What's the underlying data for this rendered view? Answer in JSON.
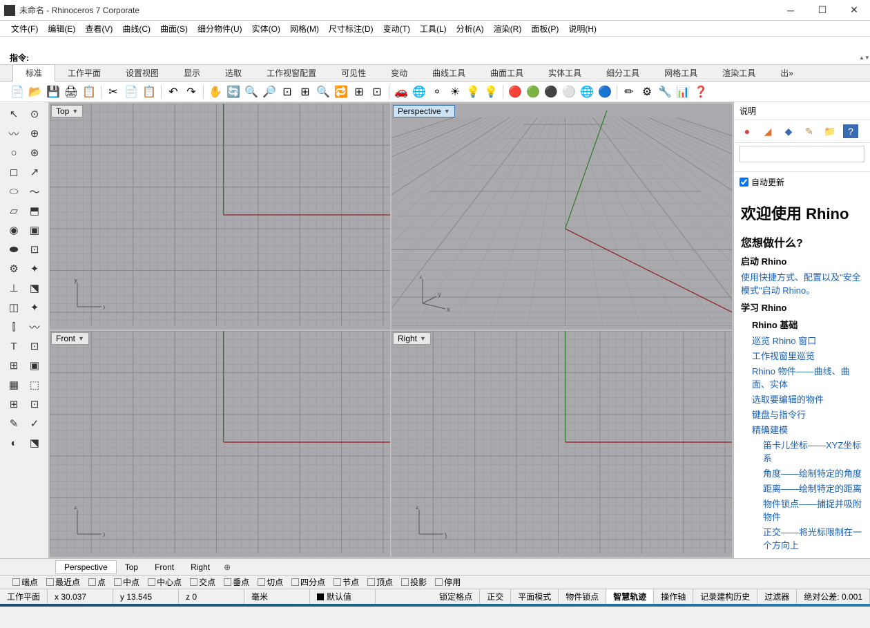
{
  "window": {
    "title": "未命名 - Rhinoceros 7 Corporate"
  },
  "menubar": [
    "文件(F)",
    "编辑(E)",
    "查看(V)",
    "曲线(C)",
    "曲面(S)",
    "细分物件(U)",
    "实体(O)",
    "网格(M)",
    "尺寸标注(D)",
    "变动(T)",
    "工具(L)",
    "分析(A)",
    "渲染(R)",
    "面板(P)",
    "说明(H)"
  ],
  "command": {
    "label": "指令:"
  },
  "tool_tabs": [
    "标准",
    "工作平面",
    "设置视图",
    "显示",
    "选取",
    "工作视窗配置",
    "可见性",
    "变动",
    "曲线工具",
    "曲面工具",
    "实体工具",
    "细分工具",
    "网格工具",
    "渲染工具",
    "出»"
  ],
  "viewports": {
    "top": "Top",
    "perspective": "Perspective",
    "front": "Front",
    "right": "Right",
    "axes": {
      "top": [
        "x",
        "y"
      ],
      "persp": [
        "x",
        "y",
        "z"
      ],
      "front": [
        "x",
        "z"
      ],
      "right": [
        "y",
        "z"
      ]
    }
  },
  "vp_tabs": [
    "Perspective",
    "Top",
    "Front",
    "Right"
  ],
  "right_panel": {
    "title": "说明",
    "auto_update": "自动更新",
    "h1": "欢迎使用 Rhino",
    "h2": "您想做什么?",
    "sec1_title": "启动 Rhino",
    "sec1_link": "使用快捷方式、配置以及\"安全模式\"启动 Rhino。",
    "sec2_title": "学习 Rhino",
    "sec2_sub": "Rhino 基础",
    "links": [
      "巡览 Rhino 窗口",
      "工作视窗里巡览",
      "Rhino 物件——曲线、曲面、实体",
      "选取要编辑的物件",
      "键盘与指令行",
      "精确建模"
    ],
    "sublinks": [
      "笛卡儿坐标——XYZ坐标系",
      "角度——绘制特定的角度",
      "距离——绘制特定的距离",
      "物件锁点——捕捉并吸附物件",
      "正交——将光标限制在一个方向上"
    ]
  },
  "osnap": [
    "端点",
    "最近点",
    "点",
    "中点",
    "中心点",
    "交点",
    "垂点",
    "切点",
    "四分点",
    "节点",
    "顶点",
    "投影",
    "停用"
  ],
  "status": {
    "cplane": "工作平面",
    "x": "x 30.037",
    "y": "y 13.545",
    "z": "z 0",
    "unit": "毫米",
    "layer": "默认值",
    "toggles": [
      "锁定格点",
      "正交",
      "平面模式",
      "物件锁点",
      "智慧轨迹",
      "操作轴",
      "记录建构历史",
      "过滤器"
    ],
    "tol": "绝对公差: 0.001"
  },
  "colors": {
    "grid_bg": "#a9a9ae",
    "axis_x": "#8b2020",
    "axis_y": "#2a7a2a",
    "link": "#1a5fb4"
  }
}
